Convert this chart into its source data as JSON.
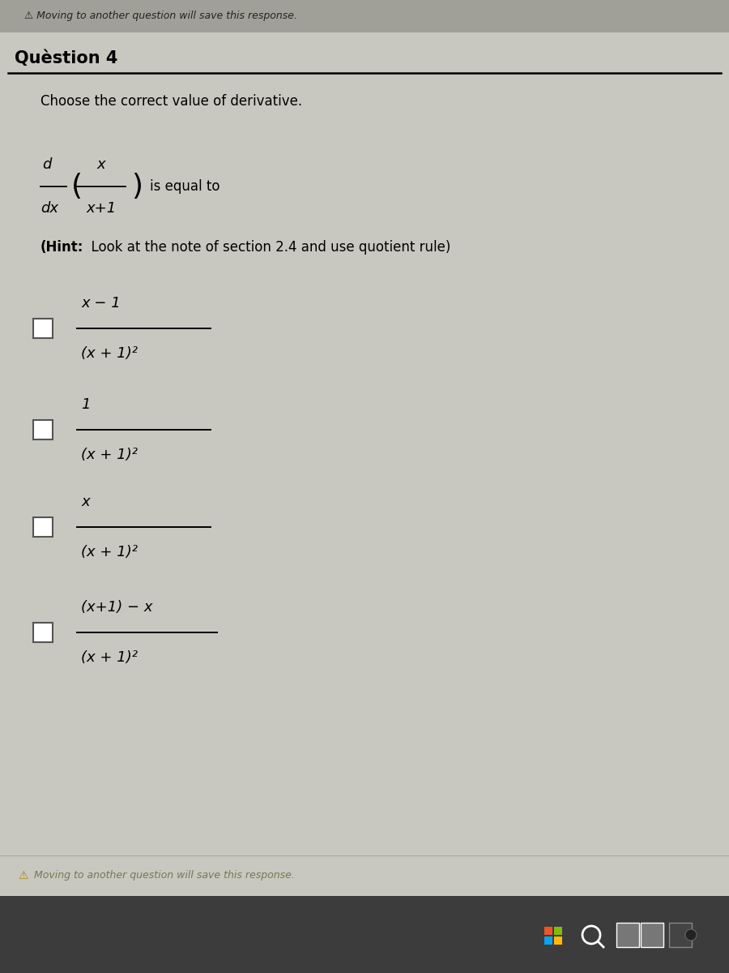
{
  "bg_color": "#c8c8c0",
  "top_bar_color": "#a0a098",
  "bottom_bar_color": "#3c3c3c",
  "white_area_color": "#e8e8e0",
  "question_title": "Quèstion 4",
  "question_text": "Choose the correct value of derivative.",
  "hint_text_bold": "(Hint:",
  "hint_text_normal": "  Look at the note of section 2.4 and use quotient rule)",
  "top_bar_text": "⚠ Moving to another question will save this response.",
  "footer_text": "⚠ Moving to another question will save this response.",
  "options": [
    {
      "numerator": "x − 1",
      "denominator": "(x + 1)²"
    },
    {
      "numerator": "1",
      "denominator": "(x + 1)²"
    },
    {
      "numerator": "x",
      "denominator": "(x + 1)²"
    },
    {
      "numerator": "(x+1) − x",
      "denominator": "(x + 1)²"
    }
  ],
  "title_fontsize": 15,
  "body_fontsize": 12,
  "math_fontsize": 13,
  "option_fontsize": 13,
  "hint_fontsize": 12
}
